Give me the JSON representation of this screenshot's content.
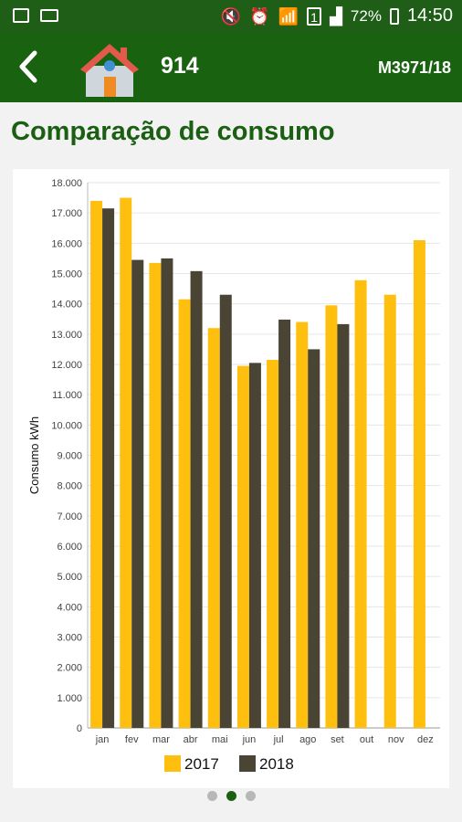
{
  "status_bar": {
    "left_icons": [
      "image-icon",
      "voicemail-icon"
    ],
    "right_icons": [
      "mute-icon",
      "alarm-icon",
      "wifi-icon",
      "sim-icon",
      "signal-icon"
    ],
    "sim_slot": "1",
    "battery": "72%",
    "time": "14:50"
  },
  "app_bar": {
    "back_icon": "back-arrow-icon",
    "property_icon": "house-icon",
    "property_number": "914",
    "meter_code": "M3971/18"
  },
  "page": {
    "title": "Comparação de consumo"
  },
  "chart_data": {
    "type": "bar",
    "ylabel": "Consumo kWh",
    "ylim": [
      0,
      18000
    ],
    "categories": [
      "jan",
      "fev",
      "mar",
      "abr",
      "mai",
      "jun",
      "jul",
      "ago",
      "set",
      "out",
      "nov",
      "dez"
    ],
    "y_tick_labels": [
      "0",
      "1.000",
      "2.000",
      "3.000",
      "4.000",
      "5.000",
      "6.000",
      "7.000",
      "8.000",
      "9.000",
      "10.000",
      "11.000",
      "12.000",
      "13.000",
      "14.000",
      "15.000",
      "16.000",
      "17.000",
      "18.000"
    ],
    "series": [
      {
        "name": "2017",
        "color": "#ffbf0f",
        "values": [
          17400,
          17500,
          15350,
          14150,
          13200,
          11950,
          12150,
          13400,
          13950,
          14780,
          14300,
          16100
        ]
      },
      {
        "name": "2018",
        "color": "#4a4434",
        "values": [
          17150,
          15450,
          15500,
          15080,
          14300,
          12050,
          13480,
          12500,
          13330,
          null,
          null,
          null
        ]
      }
    ],
    "grid": true,
    "legend": "bottom-center"
  },
  "pager": {
    "count": 3,
    "active": 2
  }
}
